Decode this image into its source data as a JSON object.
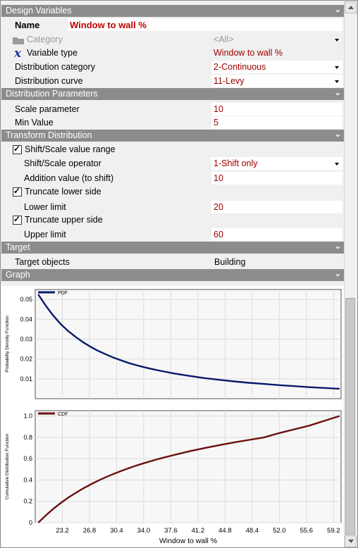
{
  "sections": {
    "design_variables": "Design Variables",
    "distribution_parameters": "Distribution Parameters",
    "transform_distribution": "Transform Distribution",
    "target": "Target",
    "graph": "Graph"
  },
  "design": {
    "name_label": "Name",
    "name_value": "Window to wall %",
    "category_label": "Category",
    "category_value": "<All>",
    "variable_type_label": "Variable type",
    "variable_type_value": "Window to wall %",
    "distribution_category_label": "Distribution category",
    "distribution_category_value": "2-Continuous",
    "distribution_curve_label": "Distribution curve",
    "distribution_curve_value": "11-Levy"
  },
  "params": {
    "scale_label": "Scale parameter",
    "scale_value": "10",
    "min_label": "Min Value",
    "min_value": "5"
  },
  "transform": {
    "shift_scale_label": "Shift/Scale value range",
    "shift_scale_checked": true,
    "operator_label": "Shift/Scale operator",
    "operator_value": "1-Shift only",
    "addition_label": "Addition value (to shift)",
    "addition_value": "10",
    "truncate_lower_label": "Truncate lower side",
    "truncate_lower_checked": true,
    "lower_limit_label": "Lower limit",
    "lower_limit_value": "20",
    "truncate_upper_label": "Truncate upper side",
    "truncate_upper_checked": true,
    "upper_limit_label": "Upper limit",
    "upper_limit_value": "60"
  },
  "target": {
    "objects_label": "Target objects",
    "objects_value": "Building"
  },
  "colors": {
    "section_bg": "#8c8c8c",
    "value_text": "#a00000",
    "pdf_line": "#0a1a6b",
    "cdf_line": "#6b0f0f"
  },
  "icons": {
    "category": "folder-icon",
    "variable_type": "variable-x-icon",
    "section_collapse": "double-chevron-icon"
  },
  "chart_data": [
    {
      "type": "line",
      "series": [
        {
          "name": "PDF",
          "x": [
            20,
            21,
            22,
            23,
            24,
            25,
            26,
            27,
            28,
            29,
            30,
            31,
            32,
            33,
            34,
            35,
            36,
            38,
            40,
            42,
            44,
            46,
            48,
            50,
            52,
            54,
            56,
            58,
            60
          ],
          "values": [
            0.0525,
            0.0468,
            0.0418,
            0.0375,
            0.034,
            0.031,
            0.0283,
            0.026,
            0.024,
            0.0223,
            0.0207,
            0.0193,
            0.018,
            0.0169,
            0.0159,
            0.015,
            0.0142,
            0.0127,
            0.0115,
            0.0104,
            0.0095,
            0.0087,
            0.008,
            0.0074,
            0.0068,
            0.0063,
            0.0058,
            0.0054,
            0.005
          ]
        }
      ],
      "ylabel": "Probability Density Function",
      "yticks": [
        "0.01",
        "0.02",
        "0.03",
        "0.04",
        "0.05"
      ],
      "ylim": [
        0,
        0.055
      ],
      "xlim": [
        19.6,
        60.2
      ],
      "grid": true,
      "legend": "top-left"
    },
    {
      "type": "line",
      "series": [
        {
          "name": "CDF",
          "x": [
            20,
            21,
            22,
            23,
            24,
            25,
            26,
            27,
            28,
            29,
            30,
            31,
            32,
            33,
            34,
            35,
            36,
            38,
            40,
            42,
            44,
            46,
            48,
            50,
            52,
            54,
            56,
            58,
            60
          ],
          "values": [
            0,
            0.068,
            0.13,
            0.185,
            0.235,
            0.28,
            0.322,
            0.36,
            0.395,
            0.427,
            0.457,
            0.485,
            0.51,
            0.535,
            0.557,
            0.578,
            0.598,
            0.634,
            0.668,
            0.698,
            0.726,
            0.752,
            0.776,
            0.8,
            0.84,
            0.875,
            0.91,
            0.955,
            1.0
          ]
        }
      ],
      "ylabel": "Cumulative Distribution Function",
      "xlabel": "Window to wall %",
      "yticks": [
        "0",
        "0.2",
        "0.4",
        "0.6",
        "0.8",
        "1.0"
      ],
      "xticks": [
        "23.2",
        "26.8",
        "30.4",
        "34.0",
        "37.6",
        "41.2",
        "44.8",
        "48.4",
        "52.0",
        "55.6",
        "59.2"
      ],
      "ylim": [
        0,
        1.05
      ],
      "xlim": [
        19.6,
        60.2
      ],
      "grid": true,
      "legend": "top-left"
    }
  ]
}
